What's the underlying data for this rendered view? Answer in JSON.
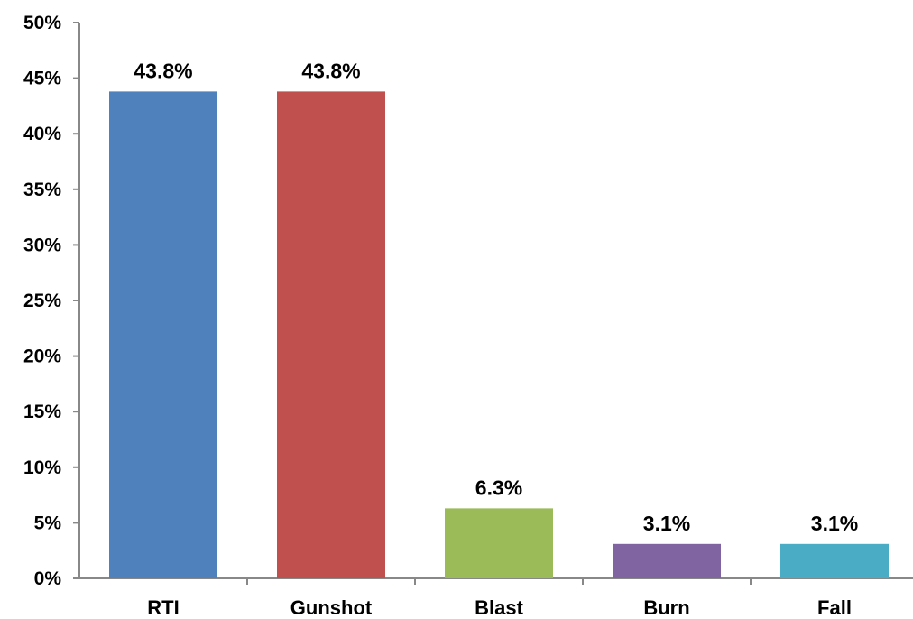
{
  "chart_data": {
    "type": "bar",
    "categories": [
      "RTI",
      "Gunshot",
      "Blast",
      "Burn",
      "Fall"
    ],
    "values": [
      43.8,
      43.8,
      6.3,
      3.1,
      3.1
    ],
    "data_labels": [
      "43.8%",
      "43.8%",
      "6.3%",
      "3.1%",
      "3.1%"
    ],
    "colors": [
      "#4F81BD",
      "#C0504D",
      "#9BBB59",
      "#8064A2",
      "#4BACC6"
    ],
    "ylim": [
      0,
      50
    ],
    "yticks": [
      0,
      5,
      10,
      15,
      20,
      25,
      30,
      35,
      40,
      45,
      50
    ],
    "ytick_labels": [
      "0%",
      "5%",
      "10%",
      "15%",
      "20%",
      "25%",
      "30%",
      "35%",
      "40%",
      "45%",
      "50%"
    ],
    "grid": false,
    "legend": "none",
    "title": "",
    "xlabel": "",
    "ylabel": ""
  }
}
